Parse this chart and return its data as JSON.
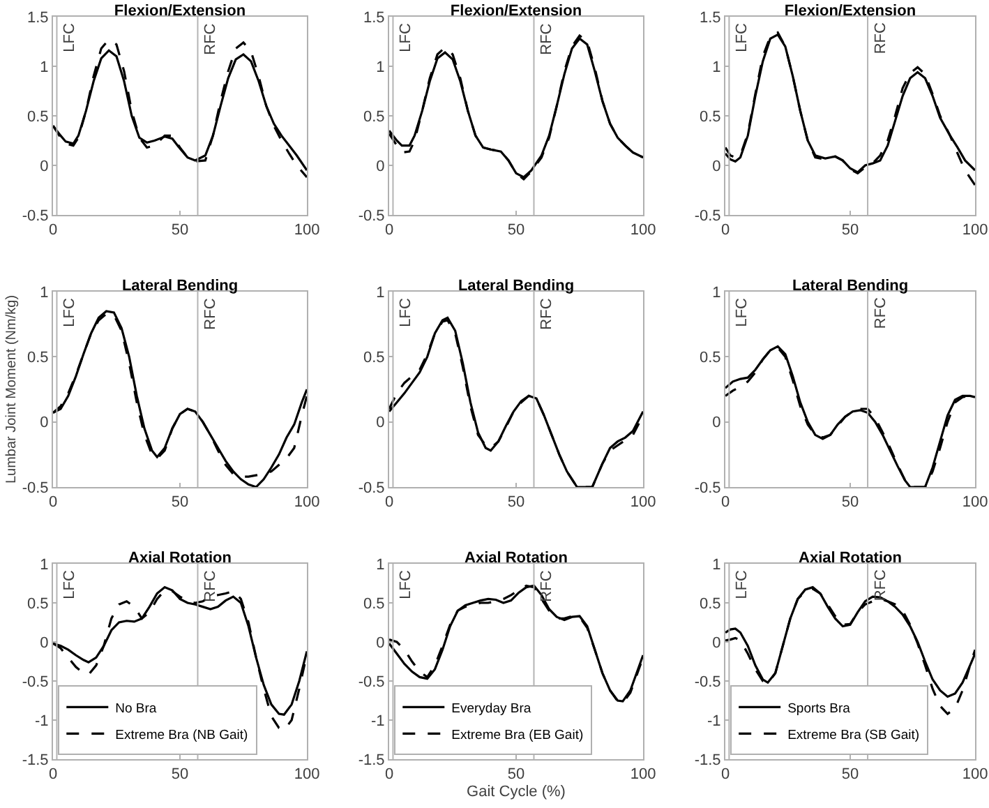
{
  "chart_data": [
    {
      "type": "line",
      "title": "Flexion/Extension",
      "x": [
        0,
        3,
        5,
        8,
        10,
        13,
        16,
        19,
        22,
        25,
        28,
        31,
        34,
        37,
        40,
        44,
        47,
        50,
        53,
        56,
        60,
        63,
        66,
        69,
        72,
        75,
        78,
        81,
        84,
        87,
        90,
        93,
        96,
        100
      ],
      "xlim": [
        0,
        100
      ],
      "xticks": [
        0,
        50,
        100
      ],
      "ylim": [
        -0.5,
        1.5
      ],
      "yticks": [
        -0.5,
        0,
        0.5,
        1,
        1.5
      ],
      "ref_lines": [
        {
          "axis": "x",
          "value": 1.5,
          "label": "LFC",
          "color": "#b4b4b4"
        },
        {
          "axis": "x",
          "value": 57,
          "label": "RFC",
          "color": "#b4b4b4"
        }
      ],
      "series": [
        {
          "color": "#000000",
          "line_style": "solid",
          "values": [
            0.4,
            0.3,
            0.24,
            0.22,
            0.3,
            0.55,
            0.85,
            1.08,
            1.16,
            1.1,
            0.85,
            0.5,
            0.28,
            0.23,
            0.25,
            0.29,
            0.27,
            0.17,
            0.08,
            0.05,
            0.1,
            0.3,
            0.6,
            0.88,
            1.07,
            1.12,
            1.05,
            0.85,
            0.6,
            0.42,
            0.3,
            0.2,
            0.1,
            -0.05
          ]
        },
        {
          "color": "#000000",
          "line_style": "dashed",
          "values": [
            0.4,
            0.28,
            0.22,
            0.2,
            0.28,
            0.55,
            0.9,
            1.18,
            1.27,
            1.22,
            0.95,
            0.55,
            0.28,
            0.18,
            0.2,
            0.3,
            0.3,
            0.18,
            0.08,
            0.04,
            0.05,
            0.3,
            0.65,
            0.95,
            1.18,
            1.24,
            1.15,
            0.9,
            0.6,
            0.4,
            0.25,
            0.12,
            0.0,
            -0.12
          ]
        }
      ]
    },
    {
      "type": "line",
      "title": "Flexion/Extension",
      "x": [
        0,
        3,
        5,
        8,
        10,
        13,
        16,
        19,
        22,
        25,
        28,
        31,
        34,
        37,
        40,
        44,
        47,
        50,
        53,
        56,
        60,
        63,
        66,
        69,
        72,
        75,
        78,
        81,
        84,
        87,
        90,
        93,
        96,
        100
      ],
      "xlim": [
        0,
        100
      ],
      "xticks": [
        0,
        50,
        100
      ],
      "ylim": [
        -0.5,
        1.5
      ],
      "yticks": [
        -0.5,
        0,
        0.5,
        1,
        1.5
      ],
      "ref_lines": [
        {
          "axis": "x",
          "value": 1.5,
          "label": "LFC",
          "color": "#b4b4b4"
        },
        {
          "axis": "x",
          "value": 57,
          "label": "RFC",
          "color": "#b4b4b4"
        }
      ],
      "series": [
        {
          "color": "#000000",
          "line_style": "solid",
          "values": [
            0.35,
            0.25,
            0.2,
            0.2,
            0.3,
            0.55,
            0.85,
            1.08,
            1.14,
            1.07,
            0.85,
            0.55,
            0.3,
            0.18,
            0.16,
            0.14,
            0.05,
            -0.08,
            -0.12,
            -0.05,
            0.1,
            0.3,
            0.6,
            0.92,
            1.18,
            1.28,
            1.22,
            0.95,
            0.65,
            0.42,
            0.28,
            0.2,
            0.13,
            0.08
          ]
        },
        {
          "color": "#000000",
          "line_style": "dashed",
          "values": [
            0.32,
            0.2,
            0.13,
            0.14,
            0.25,
            0.55,
            0.88,
            1.12,
            1.19,
            1.12,
            0.88,
            0.55,
            0.3,
            0.18,
            0.16,
            0.14,
            0.05,
            -0.08,
            -0.14,
            -0.06,
            0.08,
            0.28,
            0.6,
            0.95,
            1.2,
            1.31,
            1.25,
            0.98,
            0.65,
            0.42,
            0.28,
            0.2,
            0.13,
            0.08
          ]
        }
      ]
    },
    {
      "type": "line",
      "title": "Flexion/Extension",
      "x": [
        0,
        2,
        4,
        6,
        9,
        12,
        15,
        18,
        21,
        24,
        27,
        30,
        33,
        36,
        40,
        44,
        47,
        50,
        53,
        56,
        59,
        62,
        65,
        68,
        71,
        74,
        77,
        80,
        83,
        86,
        90,
        93,
        96,
        100
      ],
      "xlim": [
        0,
        100
      ],
      "xticks": [
        0,
        50,
        100
      ],
      "ylim": [
        -0.5,
        1.5
      ],
      "yticks": [
        -0.5,
        0,
        0.5,
        1,
        1.5
      ],
      "ref_lines": [
        {
          "axis": "x",
          "value": 1.5,
          "label": "LFC",
          "color": "#b4b4b4"
        },
        {
          "axis": "x",
          "value": 57,
          "label": "RFC",
          "color": "#b4b4b4"
        }
      ],
      "series": [
        {
          "color": "#000000",
          "line_style": "solid",
          "values": [
            0.12,
            0.06,
            0.04,
            0.08,
            0.3,
            0.7,
            1.05,
            1.28,
            1.32,
            1.2,
            0.9,
            0.55,
            0.25,
            0.1,
            0.07,
            0.09,
            0.05,
            -0.03,
            -0.07,
            0.0,
            0.02,
            0.05,
            0.2,
            0.45,
            0.7,
            0.88,
            0.94,
            0.88,
            0.7,
            0.48,
            0.3,
            0.18,
            0.05,
            -0.05
          ]
        },
        {
          "color": "#000000",
          "line_style": "dashed",
          "values": [
            0.18,
            0.1,
            0.08,
            0.1,
            0.32,
            0.72,
            1.1,
            1.3,
            1.34,
            1.2,
            0.9,
            0.55,
            0.25,
            0.08,
            0.06,
            0.09,
            0.05,
            -0.04,
            -0.08,
            -0.02,
            0.02,
            0.1,
            0.25,
            0.5,
            0.78,
            0.93,
            0.99,
            0.92,
            0.72,
            0.5,
            0.3,
            0.12,
            -0.05,
            -0.2
          ]
        }
      ]
    },
    {
      "type": "line",
      "title": "Lateral Bending",
      "ylabel": "Lumbar Joint Moment (Nm/kg)",
      "x": [
        0,
        3,
        6,
        9,
        12,
        15,
        18,
        21,
        24,
        27,
        30,
        33,
        36,
        39,
        41,
        44,
        47,
        50,
        53,
        56,
        59,
        62,
        65,
        68,
        71,
        74,
        77,
        80,
        83,
        86,
        89,
        92,
        95,
        98,
        100
      ],
      "xlim": [
        0,
        100
      ],
      "xticks": [
        0,
        50,
        100
      ],
      "ylim": [
        -0.5,
        1
      ],
      "yticks": [
        -0.5,
        0,
        0.5,
        1
      ],
      "ref_lines": [
        {
          "axis": "x",
          "value": 1.5,
          "label": "LFC",
          "color": "#b4b4b4"
        },
        {
          "axis": "x",
          "value": 57,
          "label": "RFC",
          "color": "#b4b4b4"
        }
      ],
      "series": [
        {
          "color": "#000000",
          "line_style": "solid",
          "values": [
            0.07,
            0.1,
            0.2,
            0.35,
            0.52,
            0.68,
            0.8,
            0.85,
            0.84,
            0.72,
            0.5,
            0.2,
            -0.05,
            -0.22,
            -0.27,
            -0.2,
            -0.05,
            0.06,
            0.1,
            0.08,
            0.0,
            -0.1,
            -0.2,
            -0.3,
            -0.38,
            -0.44,
            -0.48,
            -0.5,
            -0.44,
            -0.35,
            -0.25,
            -0.12,
            -0.02,
            0.15,
            0.25
          ]
        },
        {
          "color": "#000000",
          "line_style": "dashed",
          "values": [
            0.07,
            0.12,
            0.22,
            0.36,
            0.52,
            0.68,
            0.78,
            0.83,
            0.82,
            0.7,
            0.45,
            0.15,
            -0.1,
            -0.25,
            -0.28,
            -0.22,
            -0.05,
            0.06,
            0.1,
            0.08,
            0.0,
            -0.1,
            -0.22,
            -0.33,
            -0.4,
            -0.42,
            -0.42,
            -0.41,
            -0.4,
            -0.38,
            -0.33,
            -0.28,
            -0.2,
            0.05,
            0.2
          ]
        }
      ]
    },
    {
      "type": "line",
      "title": "Lateral Bending",
      "x": [
        0,
        3,
        6,
        9,
        12,
        15,
        18,
        21,
        23,
        26,
        29,
        32,
        35,
        38,
        40,
        43,
        46,
        49,
        52,
        55,
        58,
        61,
        64,
        67,
        70,
        74,
        76,
        78,
        80,
        84,
        87,
        90,
        93,
        96,
        100
      ],
      "xlim": [
        0,
        100
      ],
      "xticks": [
        0,
        50,
        100
      ],
      "ylim": [
        -0.5,
        1
      ],
      "yticks": [
        -0.5,
        0,
        0.5,
        1
      ],
      "ref_lines": [
        {
          "axis": "x",
          "value": 1.5,
          "label": "LFC",
          "color": "#b4b4b4"
        },
        {
          "axis": "x",
          "value": 57,
          "label": "RFC",
          "color": "#b4b4b4"
        }
      ],
      "series": [
        {
          "color": "#000000",
          "line_style": "solid",
          "values": [
            0.08,
            0.15,
            0.22,
            0.3,
            0.38,
            0.5,
            0.68,
            0.78,
            0.8,
            0.7,
            0.45,
            0.15,
            -0.08,
            -0.2,
            -0.22,
            -0.15,
            -0.03,
            0.08,
            0.16,
            0.2,
            0.18,
            0.05,
            -0.1,
            -0.25,
            -0.38,
            -0.5,
            null,
            null,
            -0.5,
            -0.32,
            -0.2,
            -0.15,
            -0.12,
            -0.07,
            0.08
          ]
        },
        {
          "color": "#000000",
          "line_style": "dashed",
          "values": [
            0.1,
            0.22,
            0.3,
            0.35,
            0.4,
            0.52,
            0.68,
            0.77,
            0.78,
            0.68,
            0.42,
            0.12,
            -0.1,
            -0.18,
            -0.2,
            -0.15,
            -0.04,
            0.08,
            0.15,
            0.2,
            0.18,
            0.05,
            -0.1,
            -0.25,
            -0.38,
            -0.5,
            null,
            null,
            -0.5,
            -0.32,
            -0.22,
            -0.18,
            -0.14,
            -0.1,
            0.05
          ]
        }
      ]
    },
    {
      "type": "line",
      "title": "Lateral Bending",
      "x": [
        0,
        3,
        6,
        9,
        12,
        15,
        18,
        21,
        24,
        27,
        30,
        33,
        36,
        39,
        42,
        45,
        48,
        51,
        54,
        57,
        60,
        63,
        66,
        69,
        72,
        74,
        77,
        80,
        83,
        86,
        89,
        92,
        95,
        98,
        100
      ],
      "xlim": [
        0,
        100
      ],
      "xticks": [
        0,
        50,
        100
      ],
      "ylim": [
        -0.5,
        1
      ],
      "yticks": [
        -0.5,
        0,
        0.5,
        1
      ],
      "ref_lines": [
        {
          "axis": "x",
          "value": 1.5,
          "label": "LFC",
          "color": "#b4b4b4"
        },
        {
          "axis": "x",
          "value": 57,
          "label": "RFC",
          "color": "#b4b4b4"
        }
      ],
      "series": [
        {
          "color": "#000000",
          "line_style": "solid",
          "values": [
            0.26,
            0.31,
            0.33,
            0.34,
            0.4,
            0.48,
            0.55,
            0.58,
            0.52,
            0.35,
            0.15,
            0.0,
            -0.1,
            -0.13,
            -0.1,
            -0.02,
            0.04,
            0.08,
            0.09,
            0.07,
            0.0,
            -0.1,
            -0.22,
            -0.34,
            -0.45,
            -0.5,
            null,
            -0.5,
            -0.35,
            -0.15,
            0.05,
            0.17,
            0.2,
            0.2,
            0.19
          ]
        },
        {
          "color": "#000000",
          "line_style": "dashed",
          "values": [
            0.2,
            0.24,
            0.27,
            0.31,
            0.38,
            0.48,
            0.55,
            0.57,
            0.5,
            0.32,
            0.12,
            -0.02,
            -0.1,
            -0.12,
            -0.1,
            -0.03,
            0.04,
            0.08,
            0.1,
            0.1,
            0.03,
            -0.08,
            -0.2,
            -0.33,
            -0.45,
            -0.5,
            null,
            -0.5,
            -0.38,
            -0.2,
            0.0,
            0.15,
            0.19,
            0.2,
            0.19
          ]
        }
      ]
    },
    {
      "type": "line",
      "title": "Axial Rotation",
      "x": [
        0,
        3,
        6,
        9,
        12,
        14,
        17,
        20,
        23,
        26,
        29,
        32,
        35,
        38,
        41,
        44,
        47,
        50,
        53,
        56,
        59,
        62,
        65,
        68,
        71,
        74,
        77,
        80,
        83,
        86,
        89,
        91,
        94,
        97,
        100
      ],
      "xlim": [
        0,
        100
      ],
      "xticks": [
        0,
        50,
        100
      ],
      "ylim": [
        -1.5,
        1
      ],
      "yticks": [
        -1.5,
        -1,
        -0.5,
        0,
        0.5,
        1
      ],
      "legend": "bottom left",
      "ref_lines": [
        {
          "axis": "x",
          "value": 1.5,
          "label": "LFC",
          "color": "#b4b4b4"
        },
        {
          "axis": "x",
          "value": 57,
          "label": "RFC",
          "color": "#b4b4b4"
        }
      ],
      "series": [
        {
          "name": "No Bra",
          "color": "#000000",
          "line_style": "solid",
          "values": [
            -0.02,
            -0.05,
            -0.1,
            -0.17,
            -0.23,
            -0.26,
            -0.2,
            -0.05,
            0.15,
            0.25,
            0.27,
            0.26,
            0.3,
            0.45,
            0.62,
            0.7,
            0.66,
            0.55,
            0.5,
            0.48,
            0.45,
            0.42,
            0.45,
            0.53,
            0.58,
            0.5,
            0.2,
            -0.2,
            -0.55,
            -0.8,
            -0.92,
            -0.93,
            -0.8,
            -0.5,
            -0.12
          ]
        },
        {
          "name": "Extreme Bra (NB Gait)",
          "color": "#000000",
          "line_style": "dashed",
          "values": [
            -0.02,
            -0.08,
            -0.2,
            -0.32,
            -0.4,
            -0.42,
            -0.3,
            -0.05,
            0.3,
            0.48,
            0.52,
            0.45,
            0.3,
            0.38,
            0.55,
            0.66,
            0.65,
            0.58,
            0.52,
            0.5,
            0.52,
            0.58,
            0.6,
            0.62,
            0.65,
            0.55,
            0.25,
            -0.2,
            -0.6,
            -0.95,
            -1.1,
            -1.13,
            -1.0,
            -0.6,
            -0.15
          ]
        }
      ]
    },
    {
      "type": "line",
      "title": "Axial Rotation",
      "xlabel": "Gait Cycle (%)",
      "x": [
        0,
        3,
        6,
        9,
        12,
        15,
        18,
        21,
        24,
        27,
        30,
        33,
        36,
        39,
        42,
        45,
        48,
        51,
        54,
        57,
        60,
        63,
        66,
        69,
        72,
        75,
        78,
        81,
        84,
        87,
        90,
        92,
        95,
        98,
        100
      ],
      "xlim": [
        0,
        100
      ],
      "xticks": [
        0,
        50,
        100
      ],
      "ylim": [
        -1.5,
        1
      ],
      "yticks": [
        -1.5,
        -1,
        -0.5,
        0,
        0.5,
        1
      ],
      "legend": "bottom left",
      "ref_lines": [
        {
          "axis": "x",
          "value": 1.5,
          "label": "LFC",
          "color": "#b4b4b4"
        },
        {
          "axis": "x",
          "value": 57,
          "label": "RFC",
          "color": "#b4b4b4"
        }
      ],
      "series": [
        {
          "name": "Everyday Bra",
          "color": "#000000",
          "line_style": "solid",
          "values": [
            -0.02,
            -0.15,
            -0.28,
            -0.38,
            -0.45,
            -0.47,
            -0.35,
            -0.1,
            0.2,
            0.4,
            0.47,
            0.5,
            0.53,
            0.55,
            0.54,
            0.5,
            0.53,
            0.63,
            0.7,
            0.72,
            0.6,
            0.42,
            0.32,
            0.28,
            0.32,
            0.33,
            0.2,
            -0.1,
            -0.4,
            -0.62,
            -0.75,
            -0.76,
            -0.62,
            -0.35,
            -0.17
          ]
        },
        {
          "name": "Extreme Bra (EB Gait)",
          "color": "#000000",
          "line_style": "dashed",
          "values": [
            0.03,
            0.0,
            -0.1,
            -0.25,
            -0.38,
            -0.45,
            -0.3,
            -0.05,
            0.22,
            0.4,
            0.45,
            0.47,
            0.5,
            0.5,
            0.52,
            0.55,
            0.6,
            0.66,
            0.72,
            0.7,
            0.55,
            0.4,
            0.3,
            0.3,
            0.33,
            0.32,
            0.18,
            -0.1,
            -0.4,
            -0.62,
            -0.76,
            -0.78,
            -0.65,
            -0.38,
            -0.2
          ]
        }
      ]
    },
    {
      "type": "line",
      "title": "Axial Rotation",
      "x": [
        0,
        2,
        4,
        6,
        9,
        12,
        15,
        17,
        20,
        23,
        26,
        29,
        32,
        35,
        38,
        41,
        44,
        47,
        50,
        53,
        56,
        59,
        62,
        65,
        68,
        71,
        74,
        77,
        80,
        83,
        86,
        89,
        92,
        95,
        98,
        100
      ],
      "xlim": [
        0,
        100
      ],
      "xticks": [
        0,
        50,
        100
      ],
      "ylim": [
        -1.5,
        1
      ],
      "yticks": [
        -1.5,
        -1,
        -0.5,
        0,
        0.5,
        1
      ],
      "legend": "bottom left",
      "ref_lines": [
        {
          "axis": "x",
          "value": 1.5,
          "label": "LFC",
          "color": "#b4b4b4"
        },
        {
          "axis": "x",
          "value": 57,
          "label": "RFC",
          "color": "#b4b4b4"
        }
      ],
      "series": [
        {
          "name": "Sports Bra",
          "color": "#000000",
          "line_style": "solid",
          "values": [
            0.12,
            0.16,
            0.17,
            0.12,
            -0.05,
            -0.3,
            -0.48,
            -0.52,
            -0.4,
            -0.05,
            0.3,
            0.55,
            0.67,
            0.7,
            0.62,
            0.45,
            0.3,
            0.2,
            0.22,
            0.38,
            0.52,
            0.58,
            0.57,
            0.52,
            0.45,
            0.35,
            0.2,
            0.0,
            -0.25,
            -0.48,
            -0.62,
            -0.7,
            -0.66,
            -0.52,
            -0.3,
            -0.15
          ]
        },
        {
          "name": "Extreme Bra (SB Gait)",
          "color": "#000000",
          "line_style": "dashed",
          "values": [
            0.02,
            0.03,
            0.05,
            0.02,
            -0.15,
            -0.35,
            -0.5,
            -0.53,
            -0.4,
            -0.05,
            0.3,
            0.55,
            0.65,
            0.68,
            0.62,
            0.48,
            0.33,
            0.22,
            0.23,
            0.38,
            0.48,
            0.52,
            0.55,
            0.52,
            0.48,
            0.4,
            0.22,
            -0.02,
            -0.3,
            -0.6,
            -0.82,
            -0.92,
            -0.85,
            -0.62,
            -0.3,
            -0.1
          ]
        }
      ]
    }
  ]
}
